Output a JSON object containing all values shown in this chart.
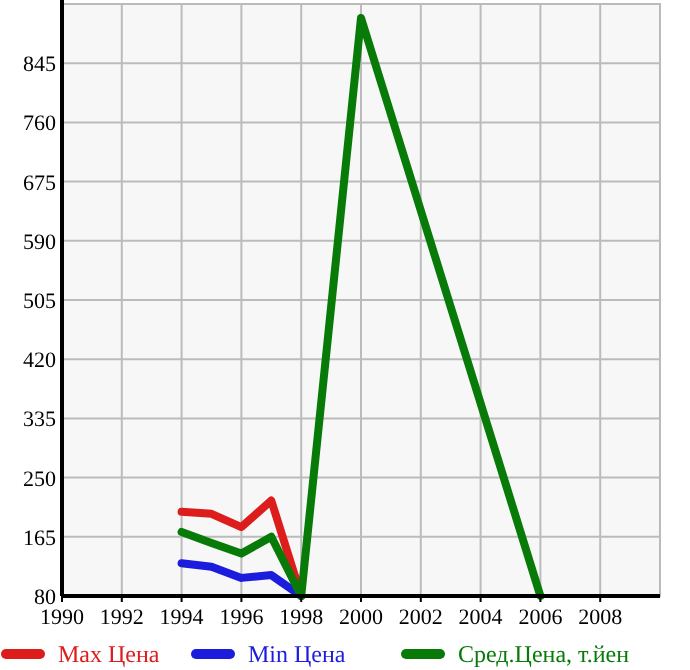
{
  "chart_data": {
    "type": "line",
    "x": [
      1994,
      1995,
      1996,
      1997,
      1998,
      2000,
      2006
    ],
    "xlim": [
      1990,
      2010
    ],
    "xticks": [
      1990,
      1992,
      1994,
      1996,
      1998,
      2000,
      2002,
      2004,
      2006,
      2008
    ],
    "ylim": [
      80,
      930
    ],
    "yticks": [
      80,
      165,
      250,
      335,
      420,
      505,
      590,
      675,
      760,
      845
    ],
    "grid": true,
    "legend": "bottom",
    "marker": "none",
    "line_style": "solid",
    "series": [
      {
        "name": "Max Цена",
        "color": "#dd1c1c",
        "values": [
          201,
          198,
          179,
          217,
          80,
          null,
          null
        ]
      },
      {
        "name": "Min Цена",
        "color": "#1c1cdd",
        "values": [
          127,
          122,
          106,
          110,
          80,
          null,
          null
        ]
      },
      {
        "name": "Сред.Цена, т.йен",
        "color": "#087a08",
        "values": [
          172,
          156,
          141,
          165,
          80,
          910,
          80
        ]
      }
    ]
  }
}
